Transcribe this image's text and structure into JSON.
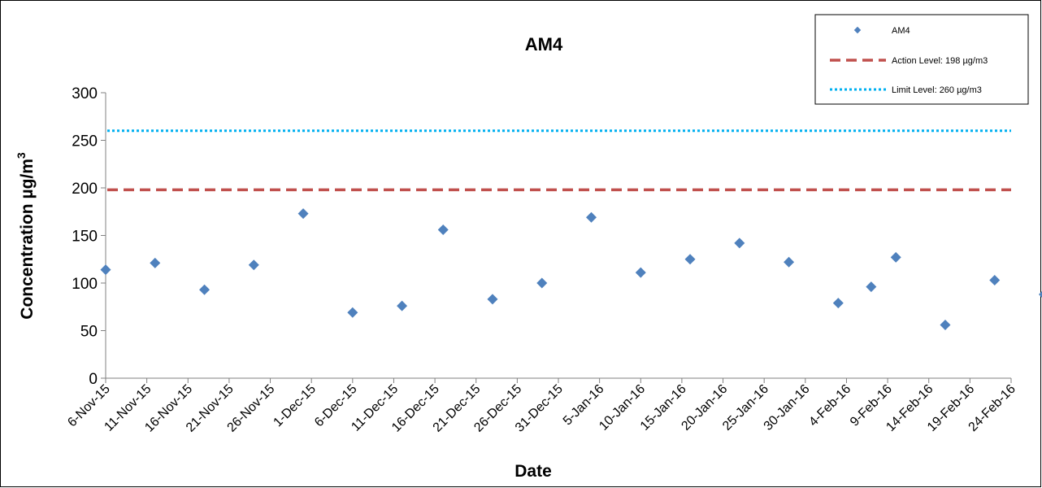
{
  "chart_data": {
    "type": "scatter",
    "title": "AM4",
    "xlabel": "Date",
    "ylabel_main": "Concentration µg/m",
    "ylabel_sup": "3",
    "ylim": [
      0,
      300
    ],
    "yticks": [
      0,
      50,
      100,
      150,
      200,
      250,
      300
    ],
    "xlim": [
      "2015-11-06",
      "2016-02-24"
    ],
    "xtick_labels": [
      "6-Nov-15",
      "11-Nov-15",
      "16-Nov-15",
      "21-Nov-15",
      "26-Nov-15",
      "1-Dec-15",
      "6-Dec-15",
      "11-Dec-15",
      "16-Dec-15",
      "21-Dec-15",
      "26-Dec-15",
      "31-Dec-15",
      "5-Jan-16",
      "10-Jan-16",
      "15-Jan-16",
      "20-Jan-16",
      "25-Jan-16",
      "30-Jan-16",
      "4-Feb-16",
      "9-Feb-16",
      "14-Feb-16",
      "19-Feb-16",
      "24-Feb-16"
    ],
    "xtick_dates": [
      "2015-11-06",
      "2015-11-11",
      "2015-11-16",
      "2015-11-21",
      "2015-11-26",
      "2015-12-01",
      "2015-12-06",
      "2015-12-11",
      "2015-12-16",
      "2015-12-21",
      "2015-12-26",
      "2015-12-31",
      "2016-01-05",
      "2016-01-10",
      "2016-01-15",
      "2016-01-20",
      "2016-01-25",
      "2016-01-30",
      "2016-02-04",
      "2016-02-09",
      "2016-02-14",
      "2016-02-19",
      "2016-02-24"
    ],
    "grid": false,
    "legend_position": "top-right",
    "series": [
      {
        "name": "AM4",
        "kind": "points",
        "color": "#4f81bd",
        "points": [
          {
            "x": "2015-11-06",
            "y": 114
          },
          {
            "x": "2015-11-12",
            "y": 121
          },
          {
            "x": "2015-11-18",
            "y": 93
          },
          {
            "x": "2015-11-24",
            "y": 119
          },
          {
            "x": "2015-11-30",
            "y": 173
          },
          {
            "x": "2015-12-06",
            "y": 69
          },
          {
            "x": "2015-12-12",
            "y": 76
          },
          {
            "x": "2015-12-17",
            "y": 156
          },
          {
            "x": "2015-12-23",
            "y": 83
          },
          {
            "x": "2015-12-29",
            "y": 100
          },
          {
            "x": "2016-01-04",
            "y": 169
          },
          {
            "x": "2016-01-10",
            "y": 111
          },
          {
            "x": "2016-01-16",
            "y": 125
          },
          {
            "x": "2016-01-22",
            "y": 142
          },
          {
            "x": "2016-01-28",
            "y": 122
          },
          {
            "x": "2016-02-03",
            "y": 79
          },
          {
            "x": "2016-02-07",
            "y": 96
          },
          {
            "x": "2016-02-10",
            "y": 127
          },
          {
            "x": "2016-02-16",
            "y": 56
          },
          {
            "x": "2016-02-22",
            "y": 103
          },
          {
            "x": "2016-02-28",
            "y": 88
          }
        ]
      },
      {
        "name": "Action Level: 198 µg/m3",
        "kind": "dashed-line",
        "color": "#c0504d",
        "value": 198
      },
      {
        "name": "Limit Level: 260 µg/m3",
        "kind": "dotted-line",
        "color": "#00b0f0",
        "value": 260
      }
    ]
  }
}
